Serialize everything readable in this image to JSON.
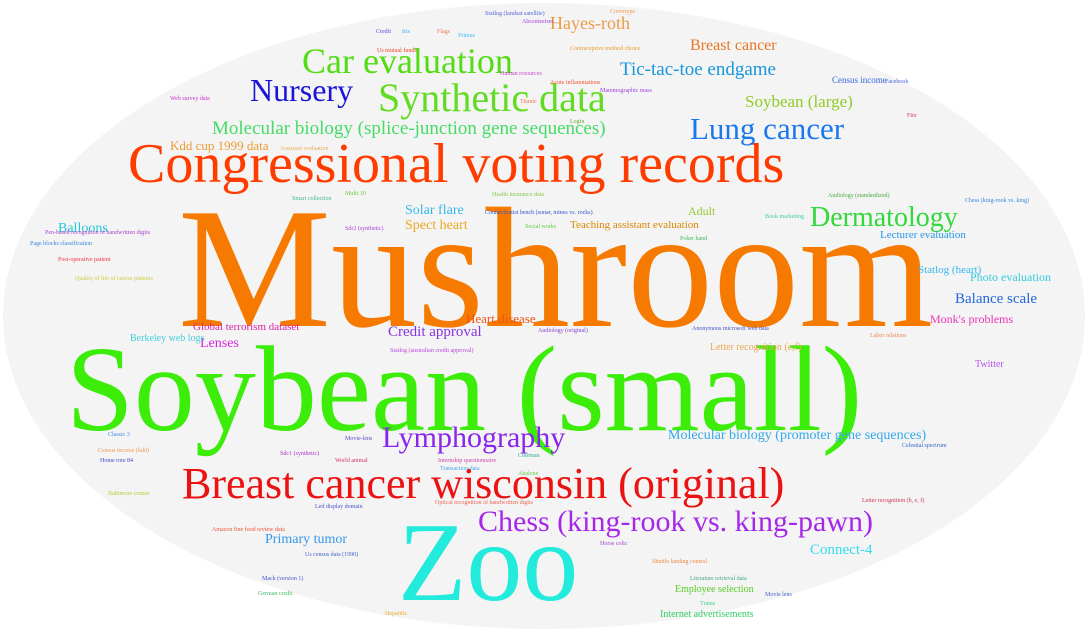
{
  "words": [
    {
      "text": "Mushroom",
      "color": "#f77a00"
    },
    {
      "text": "Soybean (small)",
      "color": "#3ded0a"
    },
    {
      "text": "Zoo",
      "color": "#22ebdc"
    },
    {
      "text": "Congressional voting records",
      "color": "#ff3c00"
    },
    {
      "text": "Breast cancer wisconsin (original)",
      "color": "#ec1212"
    },
    {
      "text": "Synthetic data",
      "color": "#62dc22"
    },
    {
      "text": "Car evaluation",
      "color": "#52dc12"
    },
    {
      "text": "Nursery",
      "color": "#1a14d8"
    },
    {
      "text": "Lung cancer",
      "color": "#1a78ec"
    },
    {
      "text": "Dermatology",
      "color": "#33d83a"
    },
    {
      "text": "Lymphography",
      "color": "#8a26ec"
    },
    {
      "text": "Chess (king-rook vs. king-pawn)",
      "color": "#a626ea"
    },
    {
      "text": "Molecular biology (splice-junction gene sequences)",
      "color": "#44dc66"
    },
    {
      "text": "Tic-tac-toe endgame",
      "color": "#1896dc"
    },
    {
      "text": "Breast cancer",
      "color": "#ec7424"
    },
    {
      "text": "Hayes-roth",
      "color": "#ec9a46"
    },
    {
      "text": "Soybean (large)",
      "color": "#8ccc24"
    },
    {
      "text": "Kdd cup 1999 data",
      "color": "#ec9a32"
    },
    {
      "text": "Balloons",
      "color": "#22c8dc"
    },
    {
      "text": "Solar flare",
      "color": "#34b8ec"
    },
    {
      "text": "Spect heart",
      "color": "#eca822"
    },
    {
      "text": "Adult",
      "color": "#98c834"
    },
    {
      "text": "Teaching assistant evaluation",
      "color": "#dc8600"
    },
    {
      "text": "Lecturer evaluation",
      "color": "#2298ec"
    },
    {
      "text": "Statlog (heart)",
      "color": "#34b8ec"
    },
    {
      "text": "Photo evaluation",
      "color": "#34ccdc"
    },
    {
      "text": "Balance scale",
      "color": "#2266dc"
    },
    {
      "text": "Monk's problems",
      "color": "#ec34b8"
    },
    {
      "text": "Heart disease",
      "color": "#ec5412"
    },
    {
      "text": "Credit approval",
      "color": "#8834dc"
    },
    {
      "text": "Global terrorism dataset",
      "color": "#dc22a8"
    },
    {
      "text": "Lenses",
      "color": "#dc22dc"
    },
    {
      "text": "Berkeley web logs",
      "color": "#44ccdc"
    },
    {
      "text": "Letter recognition (e,f)",
      "color": "#eca856"
    },
    {
      "text": "Twitter",
      "color": "#b856ec"
    },
    {
      "text": "Molecular biology (promoter gene sequences)",
      "color": "#34a8ec"
    },
    {
      "text": "Primary tumor",
      "color": "#3498ec"
    },
    {
      "text": "Connect-4",
      "color": "#34dcec"
    },
    {
      "text": "Employee selection",
      "color": "#56cc22"
    },
    {
      "text": "Internet advertisements",
      "color": "#34cc66"
    },
    {
      "text": "Census income",
      "color": "#3466dc"
    },
    {
      "text": "Statlog (landsat satellite)",
      "color": "#5566dd"
    },
    {
      "text": "Abcenteeism",
      "color": "#aa44dd"
    },
    {
      "text": "Covertype",
      "color": "#ee9944"
    },
    {
      "text": "Flags",
      "color": "#ee7755"
    },
    {
      "text": "Credit",
      "color": "#6644dd"
    },
    {
      "text": "Iris",
      "color": "#44aaee"
    },
    {
      "text": "Primus",
      "color": "#44bbee"
    },
    {
      "text": "Us mutual funds",
      "color": "#ee4422"
    },
    {
      "text": "Contraceptive method choice",
      "color": "#ee9933"
    },
    {
      "text": "Human resources",
      "color": "#cc44cc"
    },
    {
      "text": "Acute inflammations",
      "color": "#ee5533"
    },
    {
      "text": "Mammographic mass",
      "color": "#9944dd"
    },
    {
      "text": "Facebook",
      "color": "#4466dd"
    },
    {
      "text": "Web survey data",
      "color": "#cc33cc"
    },
    {
      "text": "Titanic",
      "color": "#ee7744"
    },
    {
      "text": "Fire",
      "color": "#dd3355"
    },
    {
      "text": "Login",
      "color": "#66aa33"
    },
    {
      "text": "Assistant evaluation",
      "color": "#eeaa55"
    },
    {
      "text": "Multi 10",
      "color": "#66cc44"
    },
    {
      "text": "Health insurance data",
      "color": "#88cc44"
    },
    {
      "text": "Audiology (standardized)",
      "color": "#44aa44"
    },
    {
      "text": "Smart collection",
      "color": "#44bb88"
    },
    {
      "text": "Chess (king-rook vs. king)",
      "color": "#3388dd"
    },
    {
      "text": "Connectionist bench (sonar, mines vs. rocks)",
      "color": "#3355cc"
    },
    {
      "text": "Sdr2 (synthetic)",
      "color": "#aa44dd"
    },
    {
      "text": "Book marketing",
      "color": "#44ccaa"
    },
    {
      "text": "Pen-based recognition of handwritten digits",
      "color": "#aa44cc"
    },
    {
      "text": "Page blocks classification",
      "color": "#3388dd"
    },
    {
      "text": "Social works",
      "color": "#66cc44"
    },
    {
      "text": "Poker hand",
      "color": "#44bb66"
    },
    {
      "text": "Post-operative patient",
      "color": "#ee3344"
    },
    {
      "text": "Audiology (original)",
      "color": "#8844cc"
    },
    {
      "text": "Anonymous microsoft web data",
      "color": "#4455cc"
    },
    {
      "text": "Labor relations",
      "color": "#ee8855"
    },
    {
      "text": "Statlog (australian credit approval)",
      "color": "#bb44dd"
    },
    {
      "text": "Classic 3",
      "color": "#4488dd"
    },
    {
      "text": "Movie-lens",
      "color": "#6644cc"
    },
    {
      "text": "Home rote 84",
      "color": "#4444cc"
    },
    {
      "text": "Sdc1 (synthetic)",
      "color": "#aa33cc"
    },
    {
      "text": "World animal",
      "color": "#cc3366"
    },
    {
      "text": "Internship questionnaire",
      "color": "#cc44aa"
    },
    {
      "text": "Coleman",
      "color": "#33aa99"
    },
    {
      "text": "Celestial spectrum",
      "color": "#3366cc"
    },
    {
      "text": "Transaction data",
      "color": "#44aaee"
    },
    {
      "text": "Abalone",
      "color": "#66cc44"
    },
    {
      "text": "Letter recognition (b, e, f)",
      "color": "#cc3355"
    },
    {
      "text": "Optical recognition of handwritten digits",
      "color": "#ee6655"
    },
    {
      "text": "Led display domain",
      "color": "#4455cc"
    },
    {
      "text": "Amazon fine food review data",
      "color": "#ee5533"
    },
    {
      "text": "Us census data (1990)",
      "color": "#4466cc"
    },
    {
      "text": "Horse colic",
      "color": "#aa44cc"
    },
    {
      "text": "Shuttle landing control",
      "color": "#ee8844"
    },
    {
      "text": "Mack (version 1)",
      "color": "#4455cc"
    },
    {
      "text": "German credit",
      "color": "#44bb66"
    },
    {
      "text": "Literature retrieval data",
      "color": "#44aa88"
    },
    {
      "text": "Movie lens",
      "color": "#4466cc"
    },
    {
      "text": "Hepatitis",
      "color": "#eeaa33"
    },
    {
      "text": "Trains",
      "color": "#44cc88"
    },
    {
      "text": "Baltimore crimes",
      "color": "#bbcc33"
    },
    {
      "text": "Census income (kdd)",
      "color": "#ee9955"
    },
    {
      "text": "Quality of life of cancer patients",
      "color": "#cccc44"
    }
  ]
}
